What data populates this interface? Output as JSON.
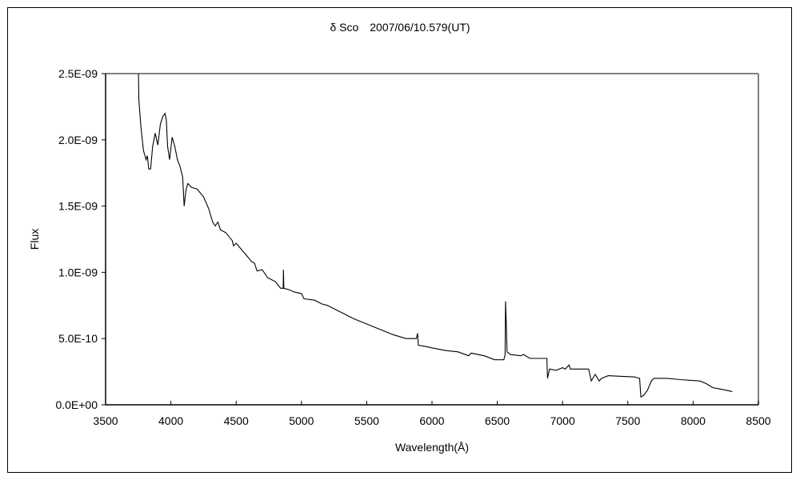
{
  "chart_data": {
    "type": "line",
    "title": "δ Sco　2007/06/10.579(UT)",
    "xlabel": "Wavelength(Å)",
    "ylabel": "Flux",
    "xlim": [
      3500,
      8500
    ],
    "ylim": [
      0,
      2.5e-09
    ],
    "x_ticks": [
      "3500",
      "4000",
      "4500",
      "5000",
      "5500",
      "6000",
      "6500",
      "7000",
      "7500",
      "8000",
      "8500"
    ],
    "y_ticks": [
      "0.0E+00",
      "5.0E-10",
      "1.0E-09",
      "1.5E-09",
      "2.0E-09",
      "2.5E-09"
    ],
    "grid": false,
    "legend": "none",
    "line_color": "#000000",
    "series": [
      {
        "x": [
          3752,
          3755,
          3770,
          3790,
          3810,
          3820,
          3830,
          3845,
          3860,
          3880,
          3900,
          3920,
          3940,
          3955,
          3965,
          3975,
          3990,
          4010,
          4030,
          4050,
          4070,
          4090,
          4102,
          4115,
          4130,
          4160,
          4200,
          4250,
          4290,
          4320,
          4340,
          4360,
          4380,
          4420,
          4470,
          4480,
          4500,
          4560,
          4620,
          4640,
          4660,
          4700,
          4740,
          4800,
          4840,
          4860,
          4862,
          4865,
          4900,
          4950,
          5000,
          5020,
          5100,
          5160,
          5200,
          5300,
          5400,
          5500,
          5600,
          5700,
          5800,
          5880,
          5890,
          5895,
          5950,
          6000,
          6100,
          6200,
          6280,
          6300,
          6400,
          6480,
          6550,
          6560,
          6563,
          6568,
          6575,
          6600,
          6680,
          6700,
          6750,
          6880,
          6885,
          6900,
          6950,
          7000,
          7020,
          7050,
          7060,
          7200,
          7220,
          7250,
          7280,
          7300,
          7350,
          7550,
          7590,
          7600,
          7620,
          7650,
          7680,
          7700,
          7800,
          7900,
          8050,
          8100,
          8150,
          8200,
          8300
        ],
        "y": [
          2.5e-09,
          2.3e-09,
          2.1e-09,
          1.92e-09,
          1.85e-09,
          1.88e-09,
          1.78e-09,
          1.78e-09,
          1.95e-09,
          2.05e-09,
          1.96e-09,
          2.12e-09,
          2.18e-09,
          2.2e-09,
          2.15e-09,
          1.95e-09,
          1.85e-09,
          2.02e-09,
          1.95e-09,
          1.85e-09,
          1.8e-09,
          1.72e-09,
          1.5e-09,
          1.62e-09,
          1.67e-09,
          1.64e-09,
          1.63e-09,
          1.57e-09,
          1.48e-09,
          1.38e-09,
          1.35e-09,
          1.38e-09,
          1.32e-09,
          1.3e-09,
          1.24e-09,
          1.2e-09,
          1.22e-09,
          1.15e-09,
          1.08e-09,
          1.07e-09,
          1.01e-09,
          1.02e-09,
          9.6e-10,
          9.3e-10,
          8.8e-10,
          8.8e-10,
          1.02e-09,
          8.8e-10,
          8.7e-10,
          8.5e-10,
          8.4e-10,
          8e-10,
          7.9e-10,
          7.6e-10,
          7.5e-10,
          7e-10,
          6.5e-10,
          6.1e-10,
          5.7e-10,
          5.3e-10,
          5e-10,
          5e-10,
          5.4e-10,
          4.5e-10,
          4.4e-10,
          4.3e-10,
          4.1e-10,
          4e-10,
          3.7e-10,
          3.9e-10,
          3.7e-10,
          3.4e-10,
          3.4e-10,
          3.8e-10,
          7.8e-10,
          6.5e-10,
          4e-10,
          3.8e-10,
          3.7e-10,
          3.8e-10,
          3.5e-10,
          3.5e-10,
          2e-10,
          2.7e-10,
          2.6e-10,
          2.8e-10,
          2.7e-10,
          3e-10,
          2.7e-10,
          2.7e-10,
          1.8e-10,
          2.3e-10,
          1.8e-10,
          2e-10,
          2.2e-10,
          2.1e-10,
          2e-10,
          6e-11,
          7e-11,
          1.1e-10,
          1.8e-10,
          2e-10,
          2e-10,
          1.9e-10,
          1.8e-10,
          1.6e-10,
          1.3e-10,
          1.2e-10,
          1e-10
        ]
      }
    ]
  }
}
